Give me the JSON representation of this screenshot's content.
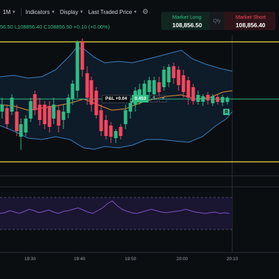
{
  "toolbar": {
    "interval": "1M",
    "indicators_label": "Indicators",
    "display_label": "Display",
    "price_source_label": "Last Traded Price"
  },
  "ohlc_text": "56.50 L108856.40 C108856.50 +0.10 (+0.00%)",
  "order_panel": {
    "long_label": "Market Long",
    "long_price": "108,856.50",
    "qty_label": "Qty",
    "short_label": "Market Short",
    "short_price": "108,856.40"
  },
  "position_line": {
    "pnl_text": "P&L +0.04",
    "qty_value": "0.453"
  },
  "badge_label": "B",
  "time_axis": [
    "19:30",
    "19:40",
    "19:50",
    "20:00",
    "20:10"
  ],
  "colors": {
    "up": "#2ebd85",
    "down": "#f6465d",
    "bands": "#3b82c4",
    "ma": "#e8943a",
    "oscillator": "#7e57c2",
    "hline": "#f0e442"
  },
  "icons": [
    "chevron-down-icon",
    "gear-icon",
    "split-icon",
    "close-icon"
  ]
}
